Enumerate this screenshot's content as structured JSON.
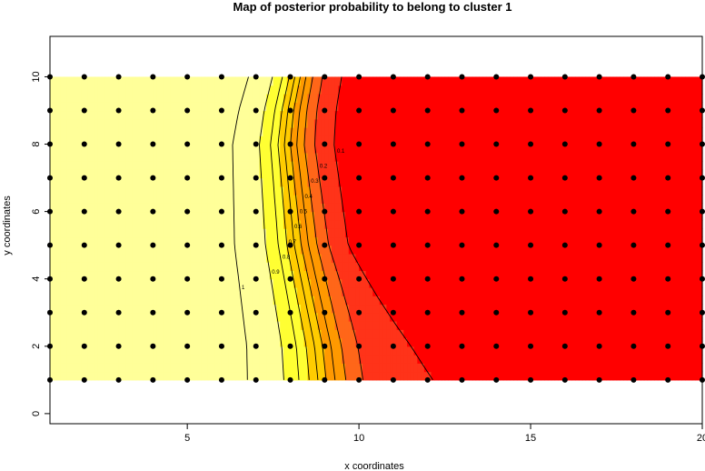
{
  "chart_data": {
    "type": "heatmap",
    "title": "Map of posterior probability to belong to cluster  1",
    "xlabel": "x coordinates",
    "ylabel": "y coordinates",
    "xlim": [
      1,
      20
    ],
    "ylim": [
      -0.3,
      11.2
    ],
    "x_ticks": [
      5,
      10,
      15,
      20
    ],
    "y_ticks": [
      0,
      2,
      4,
      6,
      8,
      10
    ],
    "x_tick_labels": [
      "5",
      "10",
      "15",
      "20"
    ],
    "y_tick_labels": [
      "0",
      "2",
      "4",
      "6",
      "8",
      "10"
    ],
    "field_extent": {
      "x": [
        1,
        20
      ],
      "y": [
        1,
        10
      ]
    },
    "color_scale": [
      {
        "level": 0.0,
        "color": "#ff0000"
      },
      {
        "level": 0.1,
        "color": "#ff3319"
      },
      {
        "level": 0.2,
        "color": "#ff6619"
      },
      {
        "level": 0.3,
        "color": "#ff9900"
      },
      {
        "level": 0.5,
        "color": "#ffcc00"
      },
      {
        "level": 0.7,
        "color": "#ffff33"
      },
      {
        "level": 0.9,
        "color": "#ffff99"
      },
      {
        "level": 1.0,
        "color": "#ffffcc"
      }
    ],
    "points_grid": {
      "x": [
        1,
        2,
        3,
        4,
        5,
        6,
        7,
        8,
        9,
        10,
        11,
        12,
        13,
        14,
        15,
        16,
        17,
        18,
        19,
        20
      ],
      "y": [
        1,
        2,
        3,
        4,
        5,
        6,
        7,
        8,
        9,
        10
      ]
    },
    "transition_x": [
      {
        "y": 1,
        "x": 8.9
      },
      {
        "y": 2,
        "x": 8.8
      },
      {
        "y": 3,
        "x": 8.6
      },
      {
        "y": 4,
        "x": 8.4
      },
      {
        "y": 5,
        "x": 8.2
      },
      {
        "y": 6,
        "x": 8.1
      },
      {
        "y": 7,
        "x": 8.0
      },
      {
        "y": 8,
        "x": 7.9
      },
      {
        "y": 9,
        "x": 8.0
      },
      {
        "y": 10,
        "x": 8.2
      }
    ],
    "contour_levels": [
      "0.1",
      "0.2",
      "0.3",
      "0.4",
      "0.5",
      "0.6",
      "0.7",
      "0.8",
      "0.9",
      "1"
    ]
  }
}
